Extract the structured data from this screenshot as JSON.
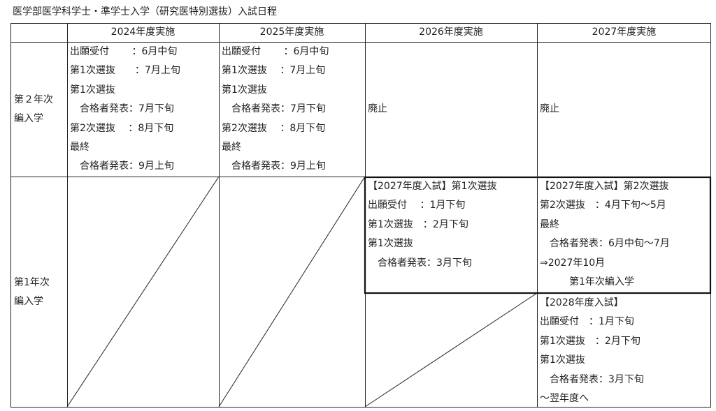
{
  "title": "医学部医学科学士・準学士入学（研究医特別選抜）入試日程",
  "headers": [
    "",
    "2024年度実施",
    "2025年度実施",
    "2026年度実施",
    "2027年度実施"
  ],
  "rows": {
    "year2": {
      "label": [
        "第２年次",
        "編入学"
      ],
      "y2024": [
        "出願受付　　 ：6月中旬",
        "第1次選抜　　：7月上旬",
        "第1次選抜",
        "　合格者発表：7月下旬",
        "第2次選抜　 ：8月下旬",
        "最終",
        "　合格者発表：9月上旬"
      ],
      "y2025": [
        "出願受付　　 ：6月中旬",
        "第1次選抜　 ：7月上旬",
        "第1次選抜",
        "　合格者発表：7月下旬",
        "第2次選抜　 ：8月下旬",
        "最終",
        "　合格者発表：9月上旬"
      ],
      "y2026": "廃止",
      "y2027": "廃止"
    },
    "year1": {
      "label": [
        "第1年次",
        "編入学"
      ],
      "y2026_upper": [
        "【2027年度入試】第1次選抜",
        "出願受付　 ：1月下旬",
        "第1次選抜　：2月下旬",
        "第1次選抜",
        "　合格者発表：3月下旬"
      ],
      "y2027_upper": [
        "【2027年度入試】第2次選抜",
        "第2次選抜　：4月下旬～5月",
        "最終",
        "　合格者発表：6月中旬～7月",
        "⇒2027年10月",
        "　　　第1年次編入学"
      ],
      "y2027_lower": [
        "【2028年度入試】",
        "出願受付　：1月下旬",
        "第1次選抜　：2月下旬",
        "第1次選抜",
        "　合格者発表：3月下旬",
        "～翌年度へ"
      ]
    }
  }
}
